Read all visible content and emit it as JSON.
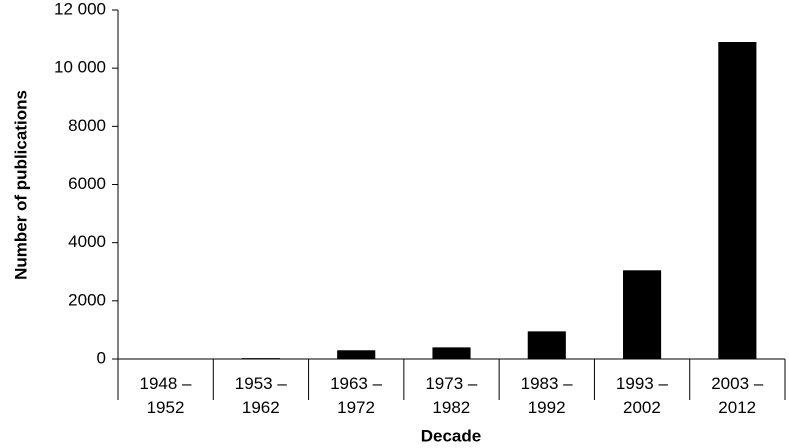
{
  "chart_data": {
    "type": "bar",
    "x_label": "Decade",
    "y_label": "Number of publications",
    "categories": [
      "1948 –\n1952",
      "1953 –\n1962",
      "1963 –\n1972",
      "1973 –\n1982",
      "1983 –\n1992",
      "1993 –\n2002",
      "2003 –\n2012"
    ],
    "values": [
      0,
      30,
      300,
      400,
      950,
      3050,
      10900
    ],
    "color": "#000000",
    "ylim": [
      0,
      12000
    ],
    "yticks": [
      0,
      2000,
      4000,
      6000,
      8000,
      {
        "value": 10000,
        "label": "10 000"
      },
      {
        "value": 12000,
        "label": "12 000"
      }
    ],
    "grid": false
  }
}
